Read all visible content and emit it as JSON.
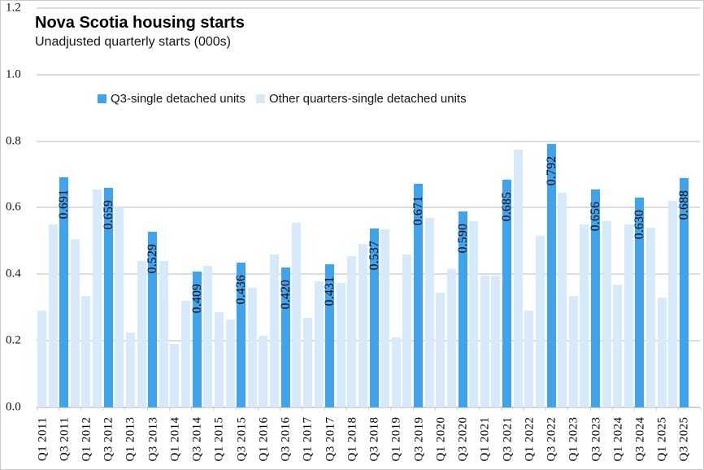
{
  "chart": {
    "title": "Nova Scotia housing starts",
    "subtitle": "Unadjusted quarterly starts (000s)",
    "legend": [
      {
        "label": "Q3-single detached units",
        "color": "#3FA3EE"
      },
      {
        "label": "Other quarters-single detached units",
        "color": "#D7EAFB"
      }
    ],
    "colors": {
      "q3_bar": "#3FA3EE",
      "other_bar": "#D7EAFB",
      "gridline": "#DCDCDC",
      "axis_line": "#CFCFCF",
      "text": "#000000"
    }
  },
  "chart_data": {
    "type": "bar",
    "title": "Nova Scotia housing starts",
    "subtitle": "Unadjusted quarterly starts (000s)",
    "ylabel": "",
    "xlabel": "",
    "ylim": [
      0,
      1.2
    ],
    "yticks": [
      0,
      0.2,
      0.4,
      0.6,
      0.8,
      1.0,
      1.2
    ],
    "ytick_labels": [
      "0.0",
      "0.2",
      "0.4",
      "0.6",
      "0.8",
      "1.0",
      "1.2"
    ],
    "grid": "horizontal",
    "legend_position": "top-center",
    "x_tick_note": "labels shown for Q1 and Q3 of each year, rotated 90 degrees",
    "series_names": [
      "Q3-single detached units",
      "Other quarters-single detached units"
    ],
    "bars": [
      {
        "quarter": "Q1 2011",
        "value": 0.29,
        "series": "other"
      },
      {
        "quarter": "Q2 2011",
        "value": 0.55,
        "series": "other"
      },
      {
        "quarter": "Q3 2011",
        "value": 0.691,
        "series": "q3",
        "label": "0.691"
      },
      {
        "quarter": "Q4 2011",
        "value": 0.505,
        "series": "other"
      },
      {
        "quarter": "Q1 2012",
        "value": 0.335,
        "series": "other"
      },
      {
        "quarter": "Q2 2012",
        "value": 0.655,
        "series": "other"
      },
      {
        "quarter": "Q3 2012",
        "value": 0.659,
        "series": "q3",
        "label": "0.659"
      },
      {
        "quarter": "Q4 2012",
        "value": 0.6,
        "series": "other"
      },
      {
        "quarter": "Q1 2013",
        "value": 0.225,
        "series": "other"
      },
      {
        "quarter": "Q2 2013",
        "value": 0.44,
        "series": "other"
      },
      {
        "quarter": "Q3 2013",
        "value": 0.529,
        "series": "q3",
        "label": "0.529"
      },
      {
        "quarter": "Q4 2013",
        "value": 0.44,
        "series": "other"
      },
      {
        "quarter": "Q1 2014",
        "value": 0.19,
        "series": "other"
      },
      {
        "quarter": "Q2 2014",
        "value": 0.32,
        "series": "other"
      },
      {
        "quarter": "Q3 2014",
        "value": 0.409,
        "series": "q3",
        "label": "0.409"
      },
      {
        "quarter": "Q4 2014",
        "value": 0.425,
        "series": "other"
      },
      {
        "quarter": "Q1 2015",
        "value": 0.285,
        "series": "other"
      },
      {
        "quarter": "Q2 2015",
        "value": 0.265,
        "series": "other"
      },
      {
        "quarter": "Q3 2015",
        "value": 0.436,
        "series": "q3",
        "label": "0.436"
      },
      {
        "quarter": "Q4 2015",
        "value": 0.36,
        "series": "other"
      },
      {
        "quarter": "Q1 2016",
        "value": 0.215,
        "series": "other"
      },
      {
        "quarter": "Q2 2016",
        "value": 0.46,
        "series": "other"
      },
      {
        "quarter": "Q3 2016",
        "value": 0.42,
        "series": "q3",
        "label": "0.420"
      },
      {
        "quarter": "Q4 2016",
        "value": 0.555,
        "series": "other"
      },
      {
        "quarter": "Q1 2017",
        "value": 0.27,
        "series": "other"
      },
      {
        "quarter": "Q2 2017",
        "value": 0.38,
        "series": "other"
      },
      {
        "quarter": "Q3 2017",
        "value": 0.431,
        "series": "q3",
        "label": "0.431"
      },
      {
        "quarter": "Q4 2017",
        "value": 0.375,
        "series": "other"
      },
      {
        "quarter": "Q1 2018",
        "value": 0.455,
        "series": "other"
      },
      {
        "quarter": "Q2 2018",
        "value": 0.49,
        "series": "other"
      },
      {
        "quarter": "Q3 2018",
        "value": 0.537,
        "series": "q3",
        "label": "0.537"
      },
      {
        "quarter": "Q4 2018",
        "value": 0.535,
        "series": "other"
      },
      {
        "quarter": "Q1 2019",
        "value": 0.21,
        "series": "other"
      },
      {
        "quarter": "Q2 2019",
        "value": 0.46,
        "series": "other"
      },
      {
        "quarter": "Q3 2019",
        "value": 0.671,
        "series": "q3",
        "label": "0.671"
      },
      {
        "quarter": "Q4 2019",
        "value": 0.57,
        "series": "other"
      },
      {
        "quarter": "Q1 2020",
        "value": 0.345,
        "series": "other"
      },
      {
        "quarter": "Q2 2020",
        "value": 0.415,
        "series": "other"
      },
      {
        "quarter": "Q3 2020",
        "value": 0.59,
        "series": "q3",
        "label": "0.590"
      },
      {
        "quarter": "Q4 2020",
        "value": 0.56,
        "series": "other"
      },
      {
        "quarter": "Q1 2021",
        "value": 0.395,
        "series": "other"
      },
      {
        "quarter": "Q2 2021",
        "value": 0.395,
        "series": "other"
      },
      {
        "quarter": "Q3 2021",
        "value": 0.685,
        "series": "q3",
        "label": "0.685"
      },
      {
        "quarter": "Q4 2021",
        "value": 0.775,
        "series": "other"
      },
      {
        "quarter": "Q1 2022",
        "value": 0.29,
        "series": "other"
      },
      {
        "quarter": "Q2 2022",
        "value": 0.515,
        "series": "other"
      },
      {
        "quarter": "Q3 2022",
        "value": 0.792,
        "series": "q3",
        "label": "0.792"
      },
      {
        "quarter": "Q4 2022",
        "value": 0.645,
        "series": "other"
      },
      {
        "quarter": "Q1 2023",
        "value": 0.335,
        "series": "other"
      },
      {
        "quarter": "Q2 2023",
        "value": 0.55,
        "series": "other"
      },
      {
        "quarter": "Q3 2023",
        "value": 0.656,
        "series": "q3",
        "label": "0.656"
      },
      {
        "quarter": "Q4 2023",
        "value": 0.56,
        "series": "other"
      },
      {
        "quarter": "Q1 2024",
        "value": 0.37,
        "series": "other"
      },
      {
        "quarter": "Q2 2024",
        "value": 0.55,
        "series": "other"
      },
      {
        "quarter": "Q3 2024",
        "value": 0.63,
        "series": "q3",
        "label": "0.630"
      },
      {
        "quarter": "Q4 2024",
        "value": 0.54,
        "series": "other"
      },
      {
        "quarter": "Q1 2025",
        "value": 0.33,
        "series": "other"
      },
      {
        "quarter": "Q2 2025",
        "value": 0.62,
        "series": "other"
      },
      {
        "quarter": "Q3 2025",
        "value": 0.688,
        "series": "q3",
        "label": "0.688"
      }
    ]
  }
}
